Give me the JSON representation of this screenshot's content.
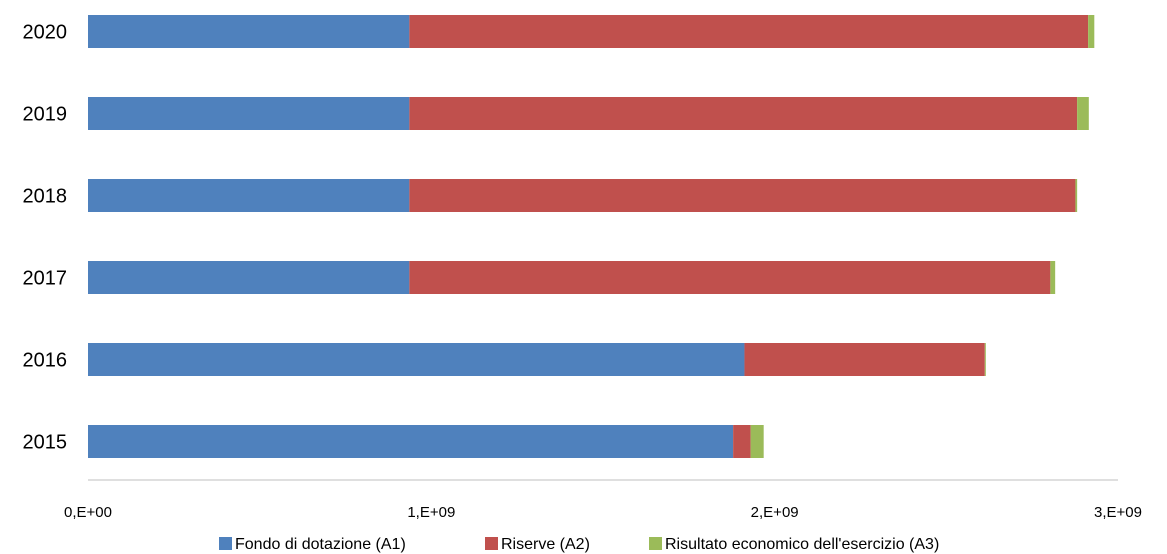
{
  "chart_data": {
    "type": "bar",
    "orientation": "horizontal",
    "stacked": true,
    "categories": [
      "2020",
      "2019",
      "2018",
      "2017",
      "2016",
      "2015"
    ],
    "series": [
      {
        "name": "Fondo di dotazione (A1)",
        "color": "#4F81BD",
        "values": [
          936000000,
          936000000,
          936000000,
          936000000,
          1912000000,
          1879000000
        ]
      },
      {
        "name": "Riserve (A2)",
        "color": "#C0504D",
        "values": [
          1977000000,
          1945000000,
          1940000000,
          1867000000,
          700000000,
          51000000
        ]
      },
      {
        "name": "Risultato economico dell'esercizio (A3)",
        "color": "#9BBB59",
        "values": [
          18000000,
          34000000,
          5000000,
          14000000,
          3000000,
          38000000
        ]
      }
    ],
    "xlim": [
      0,
      3000000000
    ],
    "xticks": [
      {
        "value": 0,
        "label": "0,E+00"
      },
      {
        "value": 1000000000,
        "label": "1,E+09"
      },
      {
        "value": 2000000000,
        "label": "2,E+09"
      },
      {
        "value": 3000000000,
        "label": "3,E+09"
      }
    ],
    "grid": false,
    "legend_position": "bottom"
  }
}
